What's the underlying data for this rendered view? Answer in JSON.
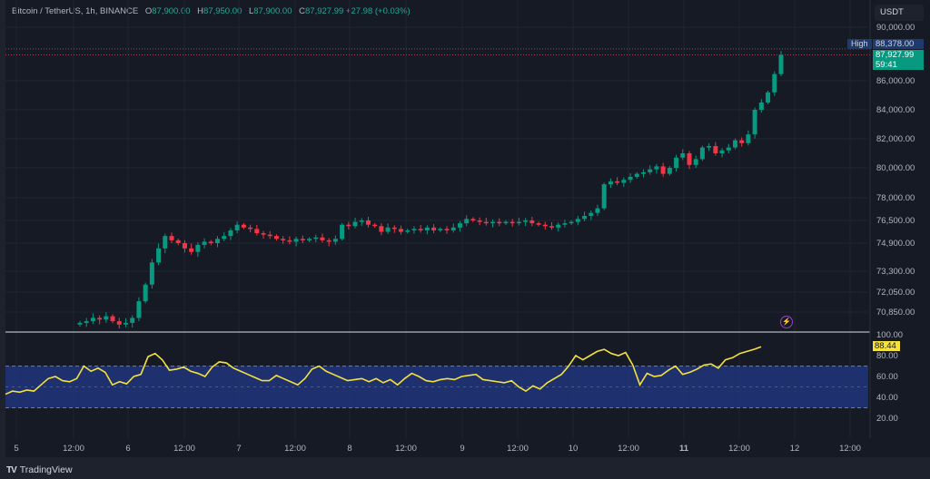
{
  "header": {
    "symbol": "Bitcoin / TetherUS, 1h, BINANCE",
    "open_label": "O",
    "open": "87,900.00",
    "high_label": "H",
    "high": "87,950.00",
    "low_label": "L",
    "low": "87,900.00",
    "close_label": "C",
    "close": "87,927.99",
    "change": "+27.98 (+0.03%)"
  },
  "price_axis": {
    "currency": "USDT",
    "high_tag": "High",
    "high_value": "88,378.00",
    "last_price": "87,927.99",
    "countdown": "59:41",
    "rsi_value": "88.44"
  },
  "footer": {
    "brand": "TradingView"
  },
  "colors": {
    "up": "#089981",
    "down": "#f23645",
    "rsi": "#f5e13c",
    "rsi_band": "#1f3477",
    "background": "#161a25"
  },
  "chart_data": [
    {
      "type": "candlestick",
      "title": "Bitcoin / TetherUS, 1h, BINANCE",
      "ylabel": "USDT",
      "y_ticks": [
        "90,000.00",
        "86,000.00",
        "84,000.00",
        "82,000.00",
        "80,000.00",
        "78,000.00",
        "76,500.00",
        "74,900.00",
        "73,300.00",
        "72,050.00",
        "70,850.00"
      ],
      "x_ticks": [
        "5",
        "12:00",
        "6",
        "12:00",
        "7",
        "12:00",
        "8",
        "12:00",
        "9",
        "12:00",
        "10",
        "12:00",
        "11",
        "12:00",
        "12",
        "12:00"
      ],
      "high_marker": 88378,
      "last_price": 87927.99,
      "closes_approx": [
        70200,
        70300,
        70500,
        70400,
        70600,
        70300,
        70100,
        70200,
        70500,
        71500,
        72500,
        73800,
        74600,
        75400,
        75100,
        74900,
        74600,
        74400,
        74800,
        75000,
        74900,
        75200,
        75400,
        75800,
        76200,
        76000,
        75900,
        75600,
        75500,
        75400,
        75200,
        75100,
        75000,
        75200,
        75100,
        75200,
        75300,
        75100,
        75000,
        75200,
        76200,
        76100,
        76400,
        76500,
        76200,
        76100,
        75700,
        76000,
        75900,
        75700,
        75800,
        75900,
        75800,
        76000,
        75800,
        75900,
        75800,
        76000,
        76300,
        76600,
        76500,
        76400,
        76300,
        76400,
        76300,
        76400,
        76300,
        76400,
        76500,
        76300,
        76200,
        76100,
        76000,
        76200,
        76300,
        76400,
        76600,
        76800,
        77000,
        77300,
        78900,
        79100,
        79000,
        79200,
        79400,
        79600,
        79700,
        79900,
        80100,
        79600,
        80000,
        80700,
        81000,
        80200,
        80600,
        81400,
        81500,
        81000,
        81200,
        81400,
        81900,
        81700,
        82300,
        84000,
        84500,
        85200,
        86500,
        87928
      ]
    },
    {
      "type": "line",
      "title": "RSI",
      "y_ticks": [
        "100.00",
        "80.00",
        "60.00",
        "40.00",
        "20.00"
      ],
      "band": [
        30,
        70
      ],
      "last_value": 88.44,
      "values_approx": [
        43,
        46,
        45,
        47,
        46,
        52,
        58,
        60,
        56,
        55,
        58,
        70,
        65,
        68,
        64,
        52,
        55,
        53,
        60,
        62,
        79,
        82,
        76,
        66,
        67,
        69,
        65,
        63,
        60,
        69,
        74,
        73,
        68,
        65,
        62,
        59,
        56,
        56,
        61,
        58,
        55,
        52,
        58,
        67,
        70,
        65,
        62,
        59,
        56,
        57,
        58,
        55,
        58,
        54,
        57,
        52,
        58,
        63,
        60,
        56,
        55,
        57,
        58,
        57,
        60,
        61,
        62,
        57,
        56,
        55,
        54,
        56,
        50,
        46,
        51,
        48,
        54,
        58,
        62,
        70,
        80,
        76,
        80,
        84,
        86,
        82,
        80,
        83,
        71,
        52,
        63,
        60,
        61,
        66,
        70,
        62,
        64,
        67,
        71,
        72,
        68,
        76,
        78,
        82,
        84,
        86,
        88.44
      ]
    }
  ]
}
